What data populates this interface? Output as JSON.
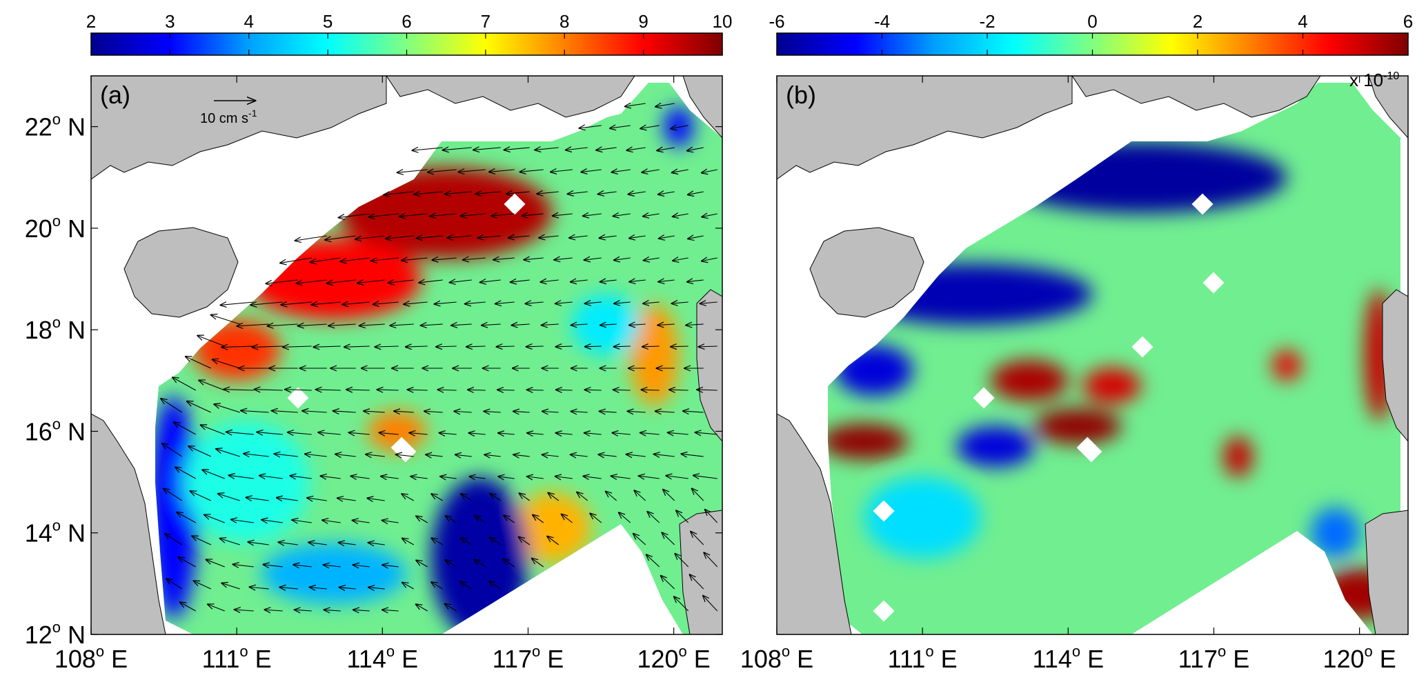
{
  "chart_data": [
    {
      "type": "heatmap",
      "panel_label": "(a)",
      "colorbar": {
        "ticks": [
          2,
          3,
          4,
          5,
          6,
          7,
          8,
          9,
          10
        ],
        "range": [
          2,
          10
        ],
        "colors": [
          "#00008f",
          "#0000ff",
          "#00a0ff",
          "#00ffff",
          "#80ff80",
          "#ffff00",
          "#ff8000",
          "#ff0000",
          "#800000"
        ]
      },
      "x_ticks": [
        "108",
        "111",
        "114",
        "117",
        "120"
      ],
      "x_suffix": "E",
      "y_ticks": [
        "12",
        "14",
        "16",
        "18",
        "20",
        "22"
      ],
      "y_suffix": "N",
      "degree_mark": "o",
      "xlim": [
        108,
        121
      ],
      "ylim": [
        12,
        23
      ],
      "arrow_legend": {
        "text": "10 cm s",
        "exponent": "-1"
      },
      "fields": {
        "background": "#70ee90",
        "blobs": [
          {
            "lon": 115.3,
            "lat": 20.3,
            "rx": 2.2,
            "ry": 0.9,
            "value": 9.6
          },
          {
            "lon": 113.0,
            "lat": 19.0,
            "rx": 1.8,
            "ry": 0.8,
            "value": 9.0
          },
          {
            "lon": 111.0,
            "lat": 17.6,
            "rx": 0.9,
            "ry": 0.6,
            "value": 8.6
          },
          {
            "lon": 114.3,
            "lat": 16.0,
            "rx": 0.6,
            "ry": 0.4,
            "value": 8.0
          },
          {
            "lon": 119.6,
            "lat": 17.5,
            "rx": 0.5,
            "ry": 1.0,
            "value": 7.8
          },
          {
            "lon": 117.5,
            "lat": 14.1,
            "rx": 0.8,
            "ry": 0.7,
            "value": 7.6
          },
          {
            "lon": 116.0,
            "lat": 13.5,
            "rx": 1.0,
            "ry": 1.6,
            "value": 2.2
          },
          {
            "lon": 109.7,
            "lat": 14.5,
            "rx": 0.5,
            "ry": 2.2,
            "value": 3.0
          },
          {
            "lon": 113.0,
            "lat": 13.2,
            "rx": 1.5,
            "ry": 0.6,
            "value": 4.2
          },
          {
            "lon": 118.6,
            "lat": 18.1,
            "rx": 0.7,
            "ry": 0.6,
            "value": 4.8
          },
          {
            "lon": 111.2,
            "lat": 15.0,
            "rx": 1.3,
            "ry": 1.2,
            "value": 5.2
          },
          {
            "lon": 120.1,
            "lat": 22.0,
            "rx": 0.3,
            "ry": 0.4,
            "value": 3.0
          }
        ]
      }
    },
    {
      "type": "heatmap",
      "panel_label": "(b)",
      "colorbar": {
        "ticks": [
          -6,
          -4,
          -2,
          0,
          2,
          4,
          6
        ],
        "range": [
          -6,
          6
        ],
        "colors": [
          "#00008f",
          "#0000ff",
          "#00a0ff",
          "#00ffff",
          "#80ff80",
          "#ffff00",
          "#ff8000",
          "#ff0000",
          "#800000"
        ]
      },
      "scale_label": {
        "base": "x 10",
        "exponent": "-10"
      },
      "x_ticks": [
        "108",
        "111",
        "114",
        "117",
        "120"
      ],
      "x_suffix": "E",
      "degree_mark": "o",
      "xlim": [
        108,
        121
      ],
      "ylim": [
        12,
        23
      ],
      "fields": {
        "background": "#70ee90",
        "blobs": [
          {
            "lon": 115.5,
            "lat": 21.0,
            "rx": 3.0,
            "ry": 0.7,
            "value": -5.8
          },
          {
            "lon": 112.0,
            "lat": 18.7,
            "rx": 2.5,
            "ry": 0.6,
            "value": -5.5
          },
          {
            "lon": 110.0,
            "lat": 17.2,
            "rx": 0.8,
            "ry": 0.5,
            "value": -5.0
          },
          {
            "lon": 113.2,
            "lat": 17.0,
            "rx": 0.8,
            "ry": 0.4,
            "value": 5.5
          },
          {
            "lon": 114.9,
            "lat": 16.9,
            "rx": 0.6,
            "ry": 0.35,
            "value": 5.0
          },
          {
            "lon": 114.2,
            "lat": 16.1,
            "rx": 0.9,
            "ry": 0.35,
            "value": 5.8
          },
          {
            "lon": 109.8,
            "lat": 15.8,
            "rx": 0.9,
            "ry": 0.35,
            "value": 5.8
          },
          {
            "lon": 112.5,
            "lat": 15.7,
            "rx": 0.8,
            "ry": 0.4,
            "value": -5.0
          },
          {
            "lon": 120.0,
            "lat": 12.8,
            "rx": 0.8,
            "ry": 0.5,
            "value": 5.6
          },
          {
            "lon": 120.4,
            "lat": 17.5,
            "rx": 0.3,
            "ry": 1.3,
            "value": 5.2
          },
          {
            "lon": 118.5,
            "lat": 17.3,
            "rx": 0.3,
            "ry": 0.3,
            "value": 4.8
          },
          {
            "lon": 117.5,
            "lat": 15.5,
            "rx": 0.3,
            "ry": 0.4,
            "value": 5.2
          },
          {
            "lon": 111.0,
            "lat": 14.3,
            "rx": 1.2,
            "ry": 0.8,
            "value": -2.0
          },
          {
            "lon": 119.5,
            "lat": 14.0,
            "rx": 0.5,
            "ry": 0.5,
            "value": -3.5
          }
        ]
      }
    }
  ]
}
